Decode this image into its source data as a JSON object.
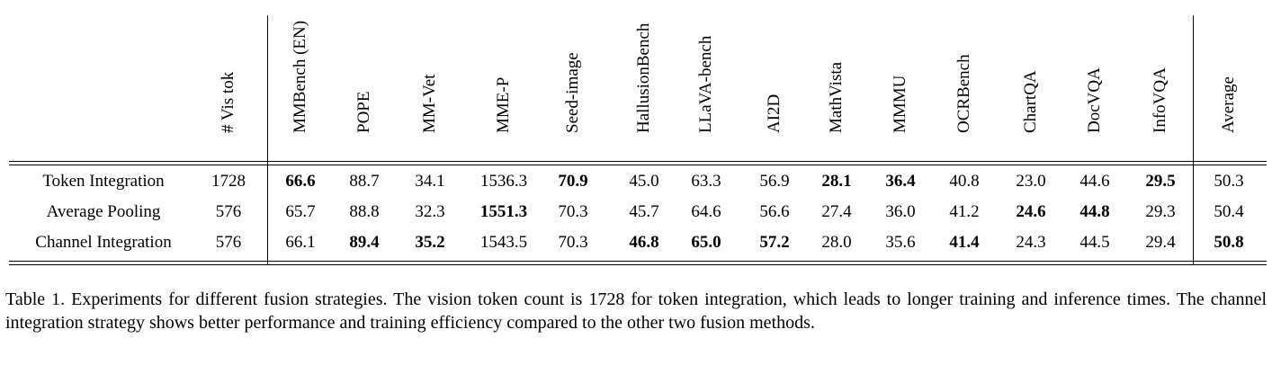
{
  "table": {
    "columns": [
      "# Vis tok",
      "MMBench (EN)",
      "POPE",
      "MM-Vet",
      "MME-P",
      "Seed-image",
      "HallusionBench",
      "LLaVA-bench",
      "AI2D",
      "MathVista",
      "MMMU",
      "OCRBench",
      "ChartQA",
      "DocVQA",
      "InfoVQA",
      "Average"
    ],
    "rows": [
      {
        "name": "Token Integration",
        "values": [
          "1728",
          "66.6",
          "88.7",
          "34.1",
          "1536.3",
          "70.9",
          "45.0",
          "63.3",
          "56.9",
          "28.1",
          "36.4",
          "40.8",
          "23.0",
          "44.6",
          "29.5",
          "50.3"
        ],
        "bold": [
          false,
          true,
          false,
          false,
          false,
          true,
          false,
          false,
          false,
          true,
          true,
          false,
          false,
          false,
          true,
          false
        ]
      },
      {
        "name": "Average Pooling",
        "values": [
          "576",
          "65.7",
          "88.8",
          "32.3",
          "1551.3",
          "70.3",
          "45.7",
          "64.6",
          "56.6",
          "27.4",
          "36.0",
          "41.2",
          "24.6",
          "44.8",
          "29.3",
          "50.4"
        ],
        "bold": [
          false,
          false,
          false,
          false,
          true,
          false,
          false,
          false,
          false,
          false,
          false,
          false,
          true,
          true,
          false,
          false
        ]
      },
      {
        "name": "Channel Integration",
        "values": [
          "576",
          "66.1",
          "89.4",
          "35.2",
          "1543.5",
          "70.3",
          "46.8",
          "65.0",
          "57.2",
          "28.0",
          "35.6",
          "41.4",
          "24.3",
          "44.5",
          "29.4",
          "50.8"
        ],
        "bold": [
          false,
          false,
          true,
          true,
          false,
          false,
          true,
          true,
          true,
          false,
          false,
          true,
          false,
          false,
          false,
          true
        ]
      }
    ]
  },
  "caption": "Table 1. Experiments for different fusion strategies. The vision token count is 1728 for token integration, which leads to longer training and inference times. The channel integration strategy shows better performance and training efficiency compared to the other two fusion methods."
}
